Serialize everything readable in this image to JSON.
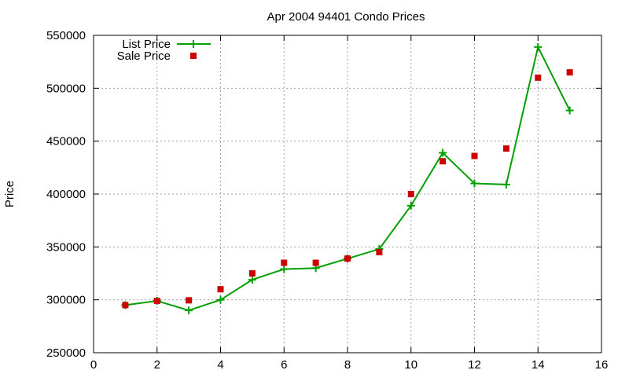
{
  "chart_data": {
    "type": "line",
    "title": "Apr 2004 94401 Condo Prices",
    "xlabel": "",
    "ylabel": "Price",
    "xlim": [
      0,
      16
    ],
    "ylim": [
      250000,
      550000
    ],
    "x_ticks": [
      "0",
      "2",
      "4",
      "6",
      "8",
      "10",
      "12",
      "14",
      "16"
    ],
    "y_ticks": [
      "250000",
      "300000",
      "350000",
      "400000",
      "450000",
      "500000",
      "550000"
    ],
    "grid": true,
    "legend_position": "top-left",
    "x": [
      1,
      2,
      3,
      4,
      5,
      6,
      7,
      8,
      9,
      10,
      11,
      12,
      13,
      14,
      15
    ],
    "series": [
      {
        "name": "List Price",
        "style": "line+cross",
        "color": "#00a000",
        "values": [
          295000,
          299000,
          290000,
          300000,
          319000,
          329000,
          330000,
          339000,
          348000,
          389000,
          439000,
          410000,
          409000,
          539000,
          479000
        ]
      },
      {
        "name": "Sale Price",
        "style": "square-points",
        "color": "#cc0000",
        "values": [
          295000,
          299000,
          299500,
          310000,
          325000,
          335000,
          335000,
          339000,
          345000,
          400000,
          431000,
          436000,
          443000,
          510000,
          515000
        ]
      }
    ]
  }
}
